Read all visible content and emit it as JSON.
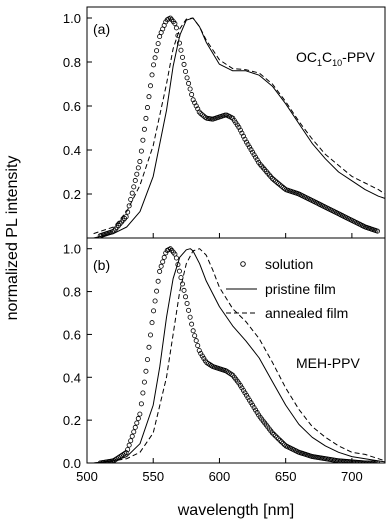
{
  "chart_data": [
    {
      "type": "line",
      "panel_label": "(a)",
      "annotation": "OC1C10-PPV",
      "annotation_main": "OC",
      "annotation_sub1": "1",
      "annotation_mid": "C",
      "annotation_sub2": "10",
      "annotation_tail": "-PPV",
      "xlim": [
        500,
        725
      ],
      "ylim": [
        0,
        1.05
      ],
      "yticks": [
        0.2,
        0.4,
        0.6,
        0.8,
        1.0
      ],
      "ytick_labels": [
        "0.2",
        "0.4",
        "0.6",
        "0.8",
        "1.0"
      ],
      "series": [
        {
          "name": "solution",
          "style": "circles",
          "x": [
            510,
            520,
            530,
            540,
            550,
            555,
            560,
            563,
            567,
            570,
            575,
            580,
            585,
            590,
            595,
            600,
            605,
            610,
            615,
            620,
            630,
            640,
            650,
            660,
            670,
            680,
            690,
            700,
            710,
            720
          ],
          "y": [
            0.01,
            0.03,
            0.1,
            0.35,
            0.78,
            0.92,
            0.99,
            1.0,
            0.97,
            0.88,
            0.74,
            0.63,
            0.57,
            0.545,
            0.54,
            0.55,
            0.56,
            0.545,
            0.5,
            0.44,
            0.34,
            0.27,
            0.22,
            0.2,
            0.17,
            0.14,
            0.11,
            0.08,
            0.05,
            0.03
          ]
        },
        {
          "name": "pristine film",
          "style": "solid",
          "x": [
            505,
            520,
            530,
            540,
            550,
            560,
            565,
            570,
            575,
            580,
            585,
            590,
            600,
            610,
            620,
            630,
            640,
            650,
            660,
            670,
            680,
            690,
            700,
            710,
            720,
            725
          ],
          "y": [
            0.0,
            0.02,
            0.05,
            0.12,
            0.28,
            0.58,
            0.78,
            0.92,
            0.99,
            1.0,
            0.96,
            0.89,
            0.79,
            0.76,
            0.76,
            0.74,
            0.69,
            0.61,
            0.52,
            0.43,
            0.36,
            0.3,
            0.26,
            0.22,
            0.19,
            0.18
          ]
        },
        {
          "name": "annealed film",
          "style": "dashed",
          "x": [
            505,
            520,
            530,
            540,
            550,
            560,
            565,
            570,
            575,
            580,
            585,
            590,
            600,
            610,
            620,
            630,
            640,
            650,
            660,
            670,
            680,
            690,
            700,
            710,
            720,
            725
          ],
          "y": [
            0.02,
            0.05,
            0.12,
            0.24,
            0.42,
            0.7,
            0.86,
            0.95,
            0.995,
            1.0,
            0.96,
            0.9,
            0.81,
            0.77,
            0.765,
            0.75,
            0.7,
            0.62,
            0.53,
            0.45,
            0.38,
            0.33,
            0.28,
            0.25,
            0.22,
            0.2
          ]
        }
      ]
    },
    {
      "type": "line",
      "panel_label": "(b)",
      "annotation": "MEH-PPV",
      "xlim": [
        500,
        725
      ],
      "ylim": [
        0,
        1.05
      ],
      "xticks": [
        500,
        550,
        600,
        650,
        700
      ],
      "xtick_labels": [
        "500",
        "550",
        "600",
        "650",
        "700"
      ],
      "yticks": [
        0.0,
        0.2,
        0.4,
        0.6,
        0.8,
        1.0
      ],
      "ytick_labels": [
        "0.0",
        "0.2",
        "0.4",
        "0.6",
        "0.8",
        "1.0"
      ],
      "legend_position": "top-right",
      "series": [
        {
          "name": "solution",
          "style": "circles",
          "x": [
            510,
            520,
            530,
            540,
            545,
            550,
            555,
            560,
            563,
            567,
            570,
            575,
            580,
            585,
            590,
            595,
            600,
            605,
            610,
            615,
            620,
            630,
            640,
            650,
            660,
            670,
            680,
            690,
            700,
            710,
            720
          ],
          "y": [
            0.0,
            0.01,
            0.05,
            0.23,
            0.45,
            0.7,
            0.9,
            0.99,
            1.0,
            0.97,
            0.89,
            0.76,
            0.62,
            0.52,
            0.47,
            0.45,
            0.44,
            0.43,
            0.41,
            0.37,
            0.32,
            0.22,
            0.14,
            0.08,
            0.05,
            0.03,
            0.02,
            0.01,
            0.005,
            0.0,
            0.0
          ]
        },
        {
          "name": "pristine film",
          "style": "solid",
          "x": [
            505,
            520,
            530,
            540,
            550,
            555,
            560,
            565,
            570,
            575,
            578,
            580,
            585,
            590,
            600,
            610,
            620,
            630,
            640,
            650,
            660,
            670,
            680,
            690,
            700,
            710,
            720,
            725
          ],
          "y": [
            0.0,
            0.01,
            0.03,
            0.09,
            0.27,
            0.45,
            0.68,
            0.86,
            0.96,
            0.995,
            1.0,
            0.99,
            0.93,
            0.85,
            0.73,
            0.64,
            0.57,
            0.49,
            0.38,
            0.27,
            0.18,
            0.12,
            0.08,
            0.05,
            0.03,
            0.02,
            0.01,
            0.005
          ]
        },
        {
          "name": "annealed film",
          "style": "dashed",
          "x": [
            505,
            520,
            530,
            540,
            550,
            560,
            565,
            570,
            575,
            580,
            585,
            590,
            595,
            600,
            610,
            620,
            630,
            640,
            650,
            660,
            670,
            680,
            690,
            700,
            710,
            720,
            725
          ],
          "y": [
            0.0,
            0.01,
            0.02,
            0.05,
            0.14,
            0.4,
            0.6,
            0.8,
            0.93,
            0.99,
            1.0,
            0.97,
            0.9,
            0.82,
            0.72,
            0.66,
            0.58,
            0.47,
            0.35,
            0.25,
            0.17,
            0.12,
            0.08,
            0.05,
            0.04,
            0.02,
            0.01
          ]
        }
      ]
    }
  ],
  "shared_labels": {
    "xlabel": "wavelength [nm]",
    "ylabel": "normalized PL intensity"
  }
}
